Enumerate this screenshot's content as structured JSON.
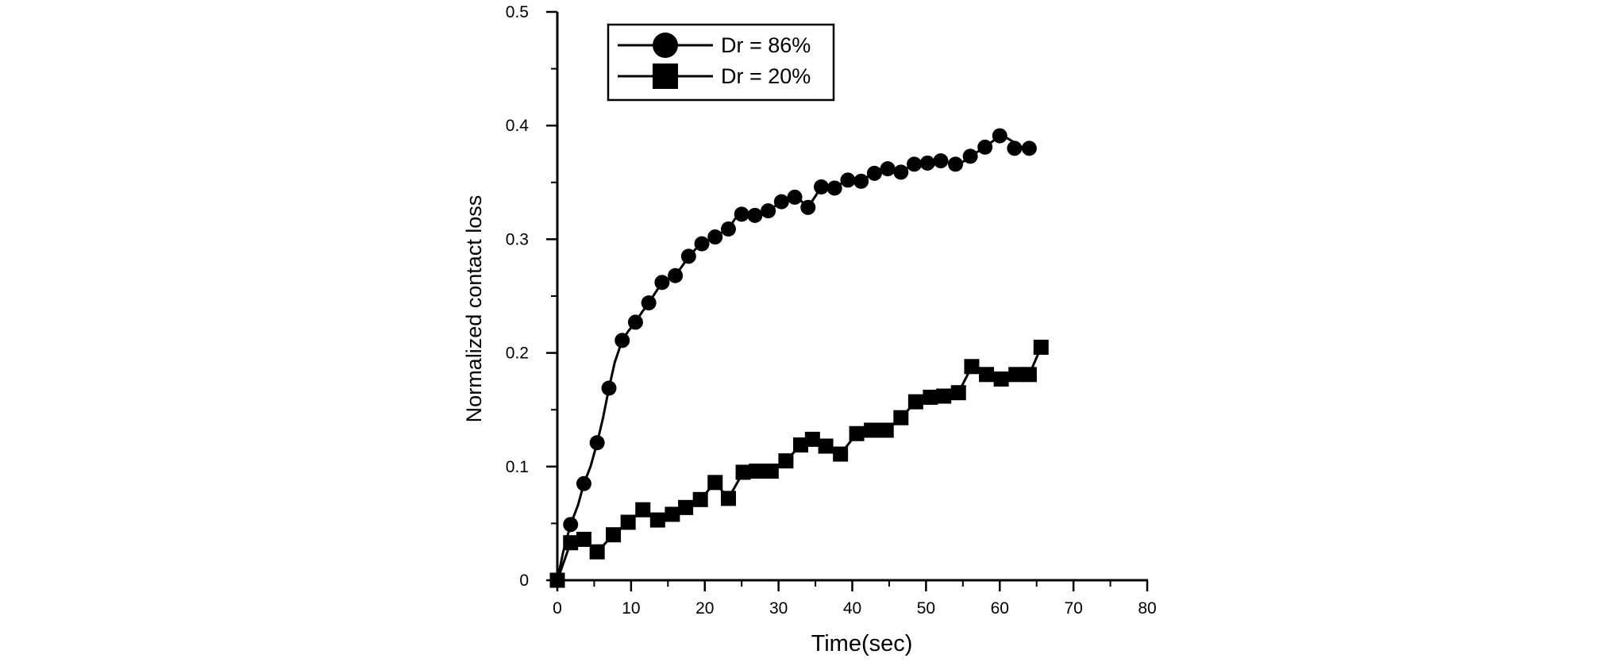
{
  "chart_data": {
    "type": "line",
    "title": "",
    "xlabel": "Time(sec)",
    "ylabel": "Normalized contact loss",
    "xlim": [
      0,
      80
    ],
    "ylim": [
      0,
      0.5
    ],
    "x_ticks": [
      0,
      10,
      20,
      30,
      40,
      50,
      60,
      70,
      80
    ],
    "x_tick_labels": [
      "0",
      "10",
      "20",
      "30",
      "40",
      "50",
      "60",
      "70",
      "80"
    ],
    "y_ticks": [
      0,
      0.1,
      0.2,
      0.3,
      0.4,
      0.5
    ],
    "y_tick_labels": [
      "0",
      "0.1",
      "0.2",
      "0.3",
      "0.4",
      "0.5"
    ],
    "grid": false,
    "legend_position": "top-left",
    "series": [
      {
        "name": "Dr = 86%",
        "marker": "circle",
        "color": "#000000",
        "x": [
          0,
          1.8,
          3.6,
          5.4,
          7.0,
          8.8,
          10.6,
          12.4,
          14.2,
          16.0,
          17.8,
          19.6,
          21.4,
          23.2,
          25.0,
          26.8,
          28.6,
          30.4,
          32.2,
          34.0,
          35.8,
          37.6,
          39.4,
          41.2,
          43.0,
          44.8,
          46.6,
          48.4,
          50.2,
          52.0,
          54.0,
          56.0,
          58.0,
          60.0,
          62.0,
          64.0
        ],
        "y": [
          0,
          0.049,
          0.085,
          0.121,
          0.169,
          0.211,
          0.227,
          0.244,
          0.262,
          0.268,
          0.285,
          0.296,
          0.302,
          0.309,
          0.322,
          0.321,
          0.325,
          0.333,
          0.337,
          0.328,
          0.346,
          0.345,
          0.352,
          0.351,
          0.358,
          0.362,
          0.359,
          0.366,
          0.367,
          0.369,
          0.366,
          0.373,
          0.381,
          0.391,
          0.38,
          0.38
        ],
        "line_x": [
          0,
          0.8,
          1.8,
          2.8,
          3.6,
          4.5,
          5.4,
          6.2,
          7.0,
          7.8,
          8.8,
          9.6,
          10.6,
          11.5,
          12.4,
          13.3,
          14.2,
          15.0,
          16.0,
          17.0,
          17.8,
          18.7,
          19.6,
          20.5,
          21.4,
          22.3,
          23.2,
          24.1,
          25.0,
          25.9,
          26.8,
          27.7,
          28.6,
          29.5,
          30.4,
          31.3,
          32.2,
          33.0,
          34.0,
          35.0,
          35.8,
          36.7,
          37.6,
          38.5,
          39.4,
          40.3,
          41.2,
          42.1,
          43.0,
          43.9,
          44.8,
          45.7,
          46.6,
          47.5,
          48.4,
          49.3,
          50.2,
          51.1,
          52.0,
          53.0,
          54.0,
          55.0,
          56.0,
          57.0,
          58.0,
          59.0,
          60.0,
          61.0,
          62.0,
          63.0,
          64.0
        ],
        "line_y": [
          0.0,
          0.025,
          0.049,
          0.066,
          0.085,
          0.1,
          0.121,
          0.143,
          0.169,
          0.192,
          0.211,
          0.219,
          0.227,
          0.236,
          0.244,
          0.253,
          0.262,
          0.265,
          0.268,
          0.277,
          0.285,
          0.291,
          0.296,
          0.299,
          0.302,
          0.306,
          0.309,
          0.318,
          0.322,
          0.32,
          0.321,
          0.323,
          0.325,
          0.329,
          0.333,
          0.335,
          0.337,
          0.334,
          0.328,
          0.338,
          0.346,
          0.344,
          0.345,
          0.349,
          0.352,
          0.353,
          0.351,
          0.355,
          0.358,
          0.362,
          0.362,
          0.359,
          0.359,
          0.363,
          0.366,
          0.366,
          0.367,
          0.366,
          0.369,
          0.368,
          0.366,
          0.368,
          0.373,
          0.377,
          0.381,
          0.386,
          0.391,
          0.389,
          0.385,
          0.381,
          0.38
        ]
      },
      {
        "name": "Dr = 20%",
        "marker": "square",
        "color": "#000000",
        "x": [
          0,
          1.8,
          3.6,
          5.4,
          7.6,
          9.6,
          11.6,
          13.6,
          15.6,
          17.4,
          19.4,
          21.4,
          23.2,
          25.2,
          27.0,
          29.0,
          31.0,
          33.0,
          34.6,
          36.4,
          38.4,
          40.6,
          42.6,
          44.6,
          46.6,
          48.6,
          50.6,
          52.4,
          54.4,
          56.2,
          58.2,
          60.2,
          62.2,
          64.0,
          65.6
        ],
        "y": [
          0,
          0.033,
          0.036,
          0.025,
          0.04,
          0.051,
          0.062,
          0.053,
          0.058,
          0.064,
          0.071,
          0.086,
          0.072,
          0.095,
          0.096,
          0.096,
          0.105,
          0.119,
          0.124,
          0.118,
          0.111,
          0.129,
          0.132,
          0.132,
          0.143,
          0.157,
          0.161,
          0.162,
          0.165,
          0.188,
          0.181,
          0.177,
          0.181,
          0.181,
          0.205
        ]
      }
    ]
  }
}
